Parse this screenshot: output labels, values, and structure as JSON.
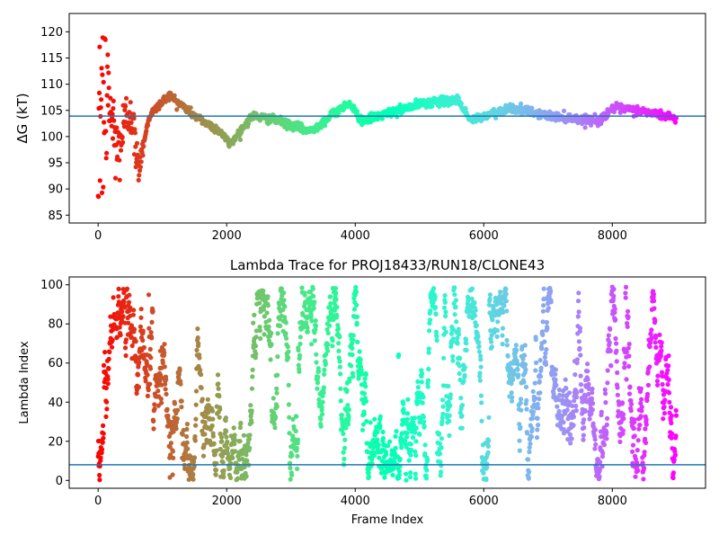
{
  "chart_data": [
    {
      "type": "scatter",
      "title": "",
      "xlabel": "",
      "ylabel": "ΔG (kT)",
      "xlim": [
        -450,
        9450
      ],
      "ylim": [
        83.5,
        123.5
      ],
      "xticks": [
        0,
        2000,
        4000,
        6000,
        8000
      ],
      "yticks": [
        85,
        90,
        95,
        100,
        105,
        110,
        115,
        120
      ],
      "hline": 103.9,
      "hline_color": "#1f77b4",
      "colormap": "rainbow (reversed: red at start, violet at end)",
      "series_description": "Free-energy estimate per frame, colored by frame index",
      "n_frames": 9000,
      "key_points": [
        {
          "x": 0,
          "y": 90
        },
        {
          "x": 20,
          "y": 120
        },
        {
          "x": 60,
          "y": 88
        },
        {
          "x": 150,
          "y": 108
        },
        {
          "x": 300,
          "y": 97
        },
        {
          "x": 500,
          "y": 106
        },
        {
          "x": 620,
          "y": 94
        },
        {
          "x": 800,
          "y": 104
        },
        {
          "x": 1100,
          "y": 108
        },
        {
          "x": 1500,
          "y": 104
        },
        {
          "x": 1900,
          "y": 101
        },
        {
          "x": 2050,
          "y": 98.5
        },
        {
          "x": 2400,
          "y": 104
        },
        {
          "x": 2800,
          "y": 103
        },
        {
          "x": 3300,
          "y": 101
        },
        {
          "x": 3900,
          "y": 106.5
        },
        {
          "x": 4100,
          "y": 103
        },
        {
          "x": 5100,
          "y": 106.5
        },
        {
          "x": 5600,
          "y": 107
        },
        {
          "x": 5800,
          "y": 103
        },
        {
          "x": 6400,
          "y": 105.5
        },
        {
          "x": 7000,
          "y": 104
        },
        {
          "x": 7800,
          "y": 103
        },
        {
          "x": 8000,
          "y": 105.5
        },
        {
          "x": 8400,
          "y": 105
        },
        {
          "x": 9000,
          "y": 103.5
        }
      ]
    },
    {
      "type": "scatter",
      "title": "Lambda Trace for PROJ18433/RUN18/CLONE43",
      "xlabel": "Frame Index",
      "ylabel": "Lambda Index",
      "xlim": [
        -450,
        9450
      ],
      "ylim": [
        -4,
        104
      ],
      "xticks": [
        0,
        2000,
        4000,
        6000,
        8000
      ],
      "yticks": [
        0,
        20,
        40,
        60,
        80,
        100
      ],
      "hline": 8,
      "hline_color": "#1f77b4",
      "colormap": "rainbow (reversed: red at start, violet at end)",
      "series_description": "Lambda index visited at each frame, values spanning 0 to 99, colored by frame index",
      "n_frames": 9000,
      "lambda_range": [
        0,
        99
      ]
    }
  ]
}
